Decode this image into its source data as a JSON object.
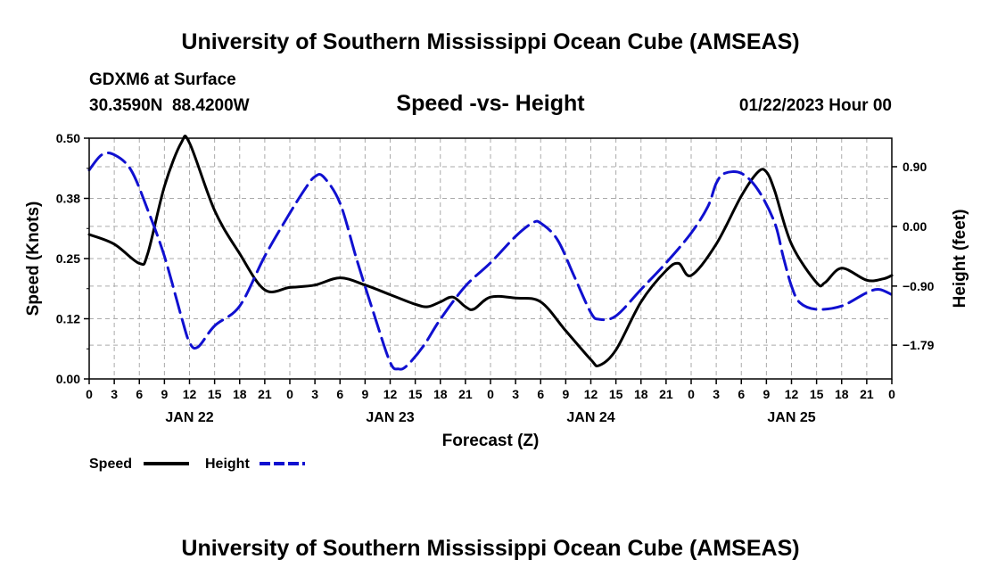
{
  "header": {
    "title": "University of Southern Mississippi Ocean Cube (AMSEAS)",
    "station": "GDXM6 at Surface",
    "coords": "30.3590N  88.4200W",
    "plot_title": "Speed -vs- Height",
    "date": "01/22/2023 Hour 00"
  },
  "footer": {
    "title": "University of Southern Mississippi Ocean Cube (AMSEAS)"
  },
  "colors": {
    "speed": "#000000",
    "height": "#1010d0",
    "grid": "#aaaaaa"
  },
  "chart_data": {
    "type": "line",
    "title": "Speed -vs- Height",
    "xlabel": "Forecast (Z)",
    "ylabel": "Speed (Knots)",
    "y2label": "Height (feet)",
    "x_unit": "forecast hour",
    "xlim": [
      0,
      96
    ],
    "ylim": [
      0,
      0.5
    ],
    "y2lim": [
      -2.3,
      1.33
    ],
    "yticks": [
      0.0,
      0.125,
      0.25,
      0.375,
      0.5
    ],
    "ytick_labels": [
      "0.00",
      "0.12",
      "0.25",
      "0.38",
      "0.50"
    ],
    "y2ticks": [
      0.9,
      0.0,
      -0.9,
      -1.79
    ],
    "y2tick_labels": [
      "0.90",
      "0.00",
      "−0.90",
      "−1.79"
    ],
    "xtick_labels": [
      "0",
      "3",
      "6",
      "9",
      "12",
      "15",
      "18",
      "21",
      "0",
      "3",
      "6",
      "9",
      "12",
      "15",
      "18",
      "21",
      "0",
      "3",
      "6",
      "9",
      "12",
      "15",
      "18",
      "21",
      "0",
      "3",
      "6",
      "9",
      "12",
      "15",
      "18",
      "21",
      "0"
    ],
    "date_labels": [
      {
        "label": "JAN 22",
        "hour": 12
      },
      {
        "label": "JAN 23",
        "hour": 36
      },
      {
        "label": "JAN 24",
        "hour": 60
      },
      {
        "label": "JAN 25",
        "hour": 84
      }
    ],
    "grid": true,
    "series": [
      {
        "name": "Speed",
        "axis": "left",
        "style": "solid",
        "points": [
          [
            0,
            0.3
          ],
          [
            3,
            0.28
          ],
          [
            6,
            0.24
          ],
          [
            7,
            0.26
          ],
          [
            9,
            0.4
          ],
          [
            11,
            0.49
          ],
          [
            12,
            0.49
          ],
          [
            15,
            0.35
          ],
          [
            18,
            0.26
          ],
          [
            21,
            0.185
          ],
          [
            24,
            0.19
          ],
          [
            27,
            0.195
          ],
          [
            30,
            0.21
          ],
          [
            33,
            0.195
          ],
          [
            36,
            0.175
          ],
          [
            39,
            0.155
          ],
          [
            40.5,
            0.15
          ],
          [
            42,
            0.16
          ],
          [
            43.5,
            0.17
          ],
          [
            45,
            0.15
          ],
          [
            46,
            0.145
          ],
          [
            48,
            0.17
          ],
          [
            51,
            0.168
          ],
          [
            54,
            0.16
          ],
          [
            57,
            0.1
          ],
          [
            60,
            0.04
          ],
          [
            61,
            0.028
          ],
          [
            63,
            0.06
          ],
          [
            66,
            0.16
          ],
          [
            69,
            0.225
          ],
          [
            70.5,
            0.24
          ],
          [
            72,
            0.215
          ],
          [
            75,
            0.28
          ],
          [
            78,
            0.38
          ],
          [
            80,
            0.43
          ],
          [
            81,
            0.43
          ],
          [
            82,
            0.39
          ],
          [
            84,
            0.28
          ],
          [
            87,
            0.2
          ],
          [
            88,
            0.2
          ],
          [
            90,
            0.23
          ],
          [
            93,
            0.205
          ],
          [
            95,
            0.208
          ],
          [
            96,
            0.215
          ]
        ]
      },
      {
        "name": "Height",
        "axis": "right",
        "style": "dashed",
        "points": [
          [
            0,
            0.85
          ],
          [
            1.5,
            1.08
          ],
          [
            3,
            1.08
          ],
          [
            5,
            0.85
          ],
          [
            7,
            0.25
          ],
          [
            9,
            -0.45
          ],
          [
            11,
            -1.35
          ],
          [
            12,
            -1.75
          ],
          [
            13,
            -1.82
          ],
          [
            15,
            -1.5
          ],
          [
            18,
            -1.2
          ],
          [
            21,
            -0.45
          ],
          [
            24,
            0.2
          ],
          [
            26,
            0.6
          ],
          [
            27,
            0.75
          ],
          [
            28,
            0.75
          ],
          [
            30,
            0.35
          ],
          [
            32,
            -0.5
          ],
          [
            34,
            -1.3
          ],
          [
            36,
            -2.05
          ],
          [
            37,
            -2.15
          ],
          [
            38,
            -2.1
          ],
          [
            40,
            -1.8
          ],
          [
            42,
            -1.4
          ],
          [
            45,
            -0.9
          ],
          [
            48,
            -0.55
          ],
          [
            51,
            -0.15
          ],
          [
            53,
            0.05
          ],
          [
            54,
            0.05
          ],
          [
            56,
            -0.2
          ],
          [
            58,
            -0.75
          ],
          [
            60,
            -1.3
          ],
          [
            61,
            -1.4
          ],
          [
            63,
            -1.35
          ],
          [
            66,
            -0.95
          ],
          [
            69,
            -0.55
          ],
          [
            72,
            -0.1
          ],
          [
            74,
            0.3
          ],
          [
            75,
            0.65
          ],
          [
            76,
            0.8
          ],
          [
            78,
            0.8
          ],
          [
            80,
            0.55
          ],
          [
            82,
            0.05
          ],
          [
            83,
            -0.45
          ],
          [
            84,
            -0.9
          ],
          [
            85,
            -1.15
          ],
          [
            87,
            -1.25
          ],
          [
            90,
            -1.2
          ],
          [
            93,
            -1.0
          ],
          [
            94.5,
            -0.95
          ],
          [
            96,
            -1.03
          ]
        ]
      }
    ]
  }
}
